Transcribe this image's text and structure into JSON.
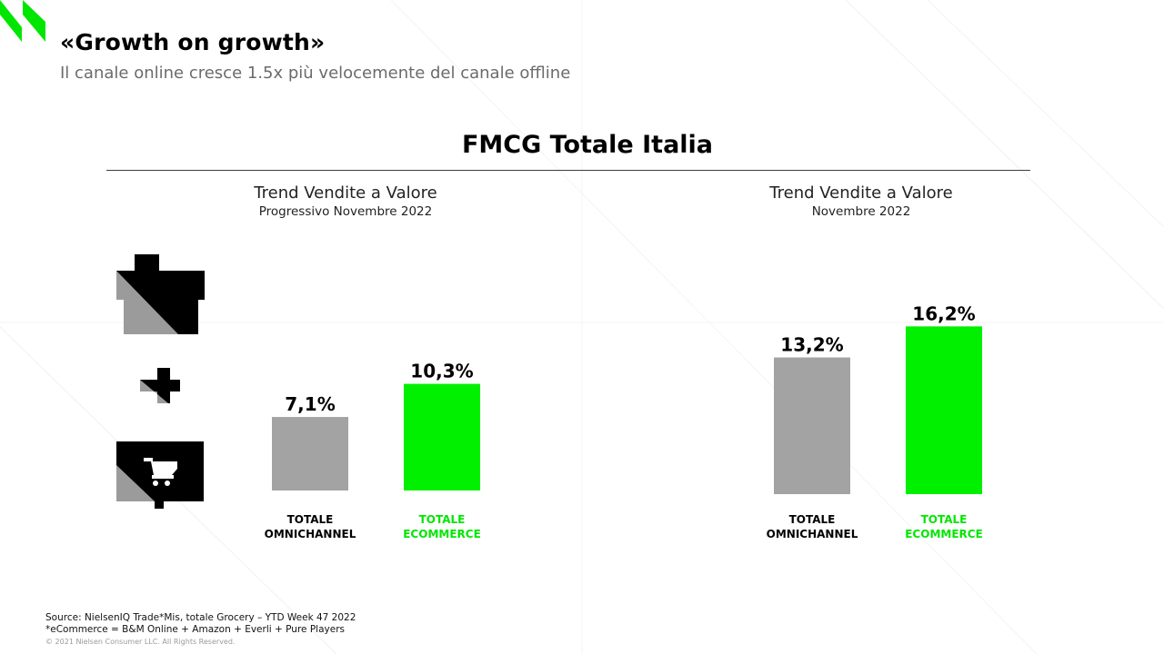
{
  "header": {
    "title": "«Growth on growth»",
    "subtitle": "Il canale online cresce 1.5x più velocemente del canale offline"
  },
  "section_title": "FMCG Totale Italia",
  "icons": [
    "store-icon",
    "plus-icon",
    "cart-screen-icon"
  ],
  "colors": {
    "omnichannel": "#a3a3a3",
    "ecommerce": "#00f000",
    "text": "#000000",
    "accent": "#00e600"
  },
  "chart_data": [
    {
      "type": "bar",
      "title": "Trend Vendite a Valore",
      "subtitle": "Progressivo Novembre 2022",
      "categories": [
        "TOTALE\nOMNICHANNEL",
        "TOTALE\nECOMMERCE"
      ],
      "category_lines": [
        [
          "TOTALE",
          "OMNICHANNEL"
        ],
        [
          "TOTALE",
          "ECOMMERCE"
        ]
      ],
      "values": [
        7.1,
        10.3
      ],
      "value_labels": [
        "7,1%",
        "10,3%"
      ],
      "unit": "%",
      "xlabel": "",
      "ylabel": "",
      "ylim": [
        0,
        17
      ],
      "grid": false,
      "legend": "none"
    },
    {
      "type": "bar",
      "title": "Trend Vendite a Valore",
      "subtitle": "Novembre 2022",
      "categories": [
        "TOTALE\nOMNICHANNEL",
        "TOTALE\nECOMMERCE"
      ],
      "category_lines": [
        [
          "TOTALE",
          "OMNICHANNEL"
        ],
        [
          "TOTALE",
          "ECOMMERCE"
        ]
      ],
      "values": [
        13.2,
        16.2
      ],
      "value_labels": [
        "13,2%",
        "16,2%"
      ],
      "unit": "%",
      "xlabel": "",
      "ylabel": "",
      "ylim": [
        0,
        17
      ],
      "grid": false,
      "legend": "none"
    }
  ],
  "footer": {
    "source": "Source: NielsenIQ Trade*Mis, totale Grocery – YTD Week 47 2022",
    "note": "*eCommerce = B&M Online + Amazon + Everli + Pure Players",
    "copyright": "© 2021 Nielsen Consumer LLC. All Rights Reserved."
  }
}
